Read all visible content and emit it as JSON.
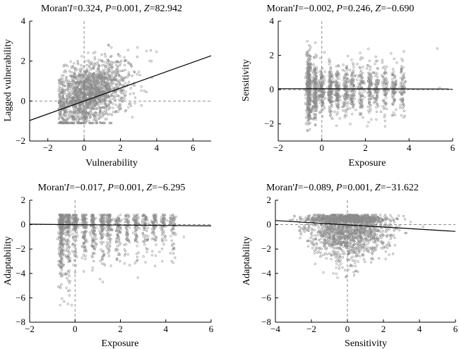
{
  "chart_data": [
    {
      "type": "scatter",
      "title": "Moran'I=0.324, P=0.001, Z=82.942",
      "title_parts": {
        "a": "Moran'",
        "b": "I",
        "c": "=0.324, ",
        "d": "P",
        "e": "=0.001, ",
        "f": "Z",
        "g": "=82.942"
      },
      "xlabel": "Vulnerability",
      "ylabel": "Lagged vulnerability",
      "xlim": [
        -3,
        7
      ],
      "ylim": [
        -2,
        4
      ],
      "xticks": [
        -2,
        0,
        2,
        4,
        6
      ],
      "yticks": [
        -2,
        0,
        2,
        4
      ],
      "regression": {
        "slope": 0.324,
        "intercept": 0
      },
      "cloud": {
        "x_range": [
          -1.4,
          4.6
        ],
        "y_range": [
          -1.1,
          3.3
        ],
        "trend": "positive"
      }
    },
    {
      "type": "scatter",
      "title": "Moran'I=−0.002, P=0.246, Z=−0.690",
      "title_parts": {
        "a": "Moran'",
        "b": "I",
        "c": "=−0.002, ",
        "d": "P",
        "e": "=0.246, ",
        "f": "Z",
        "g": "=−0.690"
      },
      "xlabel": "Exposure",
      "ylabel": "Sensitivity",
      "xlim": [
        -2,
        6
      ],
      "ylim": [
        -3,
        4
      ],
      "xticks": [
        -2,
        0,
        2,
        4,
        6
      ],
      "yticks": [
        -2,
        0,
        2,
        4
      ],
      "regression": {
        "slope": -0.002,
        "intercept": 0.05
      },
      "cloud": {
        "x_range": [
          -0.7,
          5.4
        ],
        "y_range": [
          -2.4,
          3.3
        ],
        "trend": "none"
      }
    },
    {
      "type": "scatter",
      "title": "Moran'I=−0.017, P=0.001, Z=−6.295",
      "title_parts": {
        "a": "Moran'",
        "b": "I",
        "c": "=−0.017, ",
        "d": "P",
        "e": "=0.001, ",
        "f": "Z",
        "g": "=−6.295"
      },
      "xlabel": "Exposure",
      "ylabel": "Adaptability",
      "xlim": [
        -2,
        6
      ],
      "ylim": [
        -8,
        2
      ],
      "xticks": [
        -2,
        0,
        2,
        4,
        6
      ],
      "yticks": [
        -8,
        -6,
        -4,
        -2,
        0,
        2
      ],
      "regression": {
        "slope": -0.017,
        "intercept": 0
      },
      "cloud": {
        "x_range": [
          -0.7,
          4.9
        ],
        "y_range": [
          -6.6,
          0.8
        ],
        "trend": "none"
      }
    },
    {
      "type": "scatter",
      "title": "Moran'I=−0.089, P=0.001, Z=−31.622",
      "title_parts": {
        "a": "Moran'",
        "b": "I",
        "c": "=−0.089, ",
        "d": "P",
        "e": "=0.001, ",
        "f": "Z",
        "g": "=−31.622"
      },
      "xlabel": "Sensitivity",
      "ylabel": "Adaptability",
      "xlim": [
        -4,
        6
      ],
      "ylim": [
        -8,
        2
      ],
      "xticks": [
        -4,
        -2,
        0,
        2,
        4,
        6
      ],
      "yticks": [
        -8,
        -6,
        -4,
        -2,
        0,
        2
      ],
      "regression": {
        "slope": -0.089,
        "intercept": -0.02
      },
      "cloud": {
        "x_range": [
          -3.2,
          4.2
        ],
        "y_range": [
          -6.5,
          0.8
        ],
        "trend": "negative"
      }
    }
  ],
  "colors": {
    "points": "#8c8c8c",
    "axis": "#000000",
    "reference_line": "#7f7f7f",
    "regression": "#000000"
  }
}
